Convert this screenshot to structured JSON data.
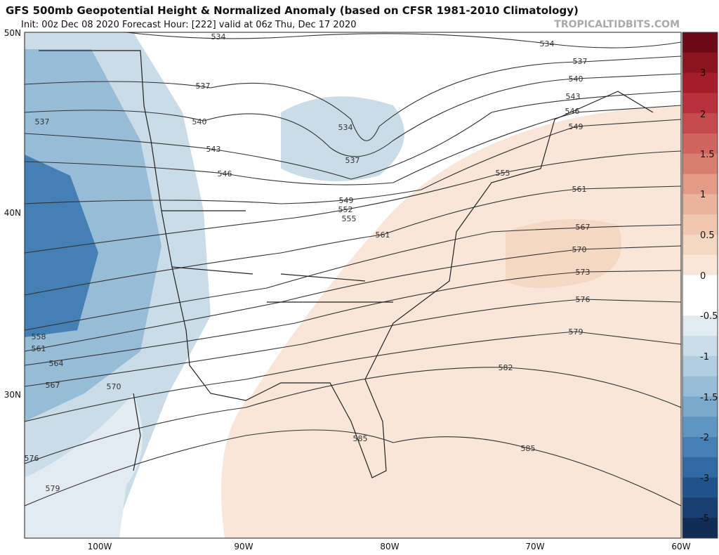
{
  "header": {
    "title": "GFS 500mb Geopotential Height & Normalized Anomaly (based on CFSR 1981-2010 Climatology)",
    "subtitle": "Init: 00z Dec 08 2020   Forecast Hour: [222]   valid at 06z Thu, Dec 17 2020",
    "source": "TROPICALTIDBITS.COM"
  },
  "map": {
    "lat_labels": [
      "50N",
      "40N",
      "30N"
    ],
    "lon_labels": [
      "100W",
      "90W",
      "80W",
      "70W",
      "60W"
    ],
    "contour_labels": [
      "534",
      "534",
      "537",
      "540",
      "543",
      "546",
      "549",
      "537",
      "540",
      "543",
      "546",
      "537",
      "534",
      "537",
      "549",
      "552",
      "555",
      "555",
      "561",
      "561",
      "567",
      "570",
      "573",
      "576",
      "579",
      "582",
      "585",
      "585",
      "558",
      "561",
      "564",
      "567",
      "570",
      "576",
      "579"
    ]
  },
  "colorbar": {
    "labels": [
      "3",
      "2",
      "1.5",
      "1",
      "0.5",
      "0",
      "-0.5",
      "-1",
      "-1.5",
      "-2",
      "-3",
      "-5"
    ],
    "colors": [
      "#6e0a17",
      "#8a1520",
      "#a51d2a",
      "#b7303a",
      "#c44a4e",
      "#d06560",
      "#d97f71",
      "#e39a86",
      "#eab39c",
      "#f0c8b0",
      "#f5d8c4",
      "#f9e6d8",
      "#ffffff",
      "#ffffff",
      "#e2ebf1",
      "#cadce8",
      "#b1cde0",
      "#97bcd7",
      "#7aa9cc",
      "#5e95c1",
      "#4580b5",
      "#2f6aa3",
      "#21538b",
      "#183f70",
      "#112c55"
    ]
  }
}
